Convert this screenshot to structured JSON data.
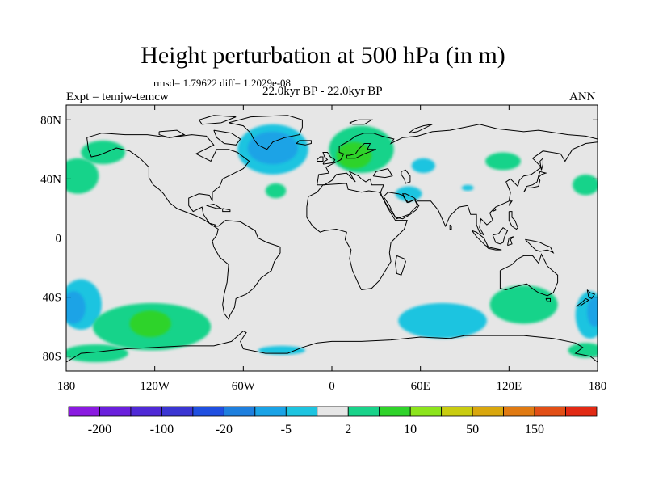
{
  "title": "Height perturbation at 500 hPa (in m)",
  "stats": "rmsd= 1.79622 diff= 1.2029e-08",
  "period": "22.0kyr BP - 22.0kyr BP",
  "experiment": "Expt = temjw-temcw",
  "season": "ANN",
  "lat_ticks": [
    {
      "label": "80N",
      "lat": 80
    },
    {
      "label": "40N",
      "lat": 40
    },
    {
      "label": "0",
      "lat": 0
    },
    {
      "label": "40S",
      "lat": -40
    },
    {
      "label": "80S",
      "lat": -80
    }
  ],
  "lon_ticks": [
    {
      "label": "180",
      "lon": -180
    },
    {
      "label": "120W",
      "lon": -120
    },
    {
      "label": "60W",
      "lon": -60
    },
    {
      "label": "0",
      "lon": 0
    },
    {
      "label": "60E",
      "lon": 60
    },
    {
      "label": "120E",
      "lon": 120
    },
    {
      "label": "180",
      "lon": 180
    }
  ],
  "colorbar": {
    "colors": [
      "#8a1ae0",
      "#6a1fdc",
      "#4f29d6",
      "#3a35d2",
      "#1f4fe0",
      "#1e7fde",
      "#1aa3e6",
      "#1dc4e0",
      "#e6e6e6",
      "#19d38a",
      "#2fd32a",
      "#8ce41c",
      "#c9cc10",
      "#d9a70d",
      "#e07a12",
      "#e24f16",
      "#e22a14"
    ],
    "labels": [
      {
        "text": "-200",
        "boundary": 1
      },
      {
        "text": "-100",
        "boundary": 3
      },
      {
        "text": "-20",
        "boundary": 5
      },
      {
        "text": "-5",
        "boundary": 7
      },
      {
        "text": "2",
        "boundary": 9
      },
      {
        "text": "10",
        "boundary": 11
      },
      {
        "text": "50",
        "boundary": 13
      },
      {
        "text": "150",
        "boundary": 15
      }
    ]
  },
  "anomalies": [
    {
      "name": "n-atlantic-negative",
      "lon": -40,
      "lat": 60,
      "rx": 24,
      "ry": 17,
      "color": "#1dc4e0"
    },
    {
      "name": "n-atlantic-negative-core",
      "lon": -40,
      "lat": 61,
      "rx": 17,
      "ry": 11,
      "color": "#1aa3e6"
    },
    {
      "name": "n-europe-positive",
      "lon": 20,
      "lat": 60,
      "rx": 22,
      "ry": 16,
      "color": "#19d38a"
    },
    {
      "name": "n-europe-positive-core",
      "lon": 15,
      "lat": 56,
      "rx": 12,
      "ry": 9,
      "color": "#2fd32a"
    },
    {
      "name": "alaska-positive",
      "lon": -155,
      "lat": 58,
      "rx": 15,
      "ry": 8,
      "color": "#19d38a"
    },
    {
      "name": "ne-pacific-positive",
      "lon": -172,
      "lat": 42,
      "rx": 14,
      "ry": 12,
      "color": "#19d38a"
    },
    {
      "name": "mid-atlantic-positive",
      "lon": -38,
      "lat": 32,
      "rx": 7,
      "ry": 5,
      "color": "#19d38a"
    },
    {
      "name": "w-siberia-negative",
      "lon": 62,
      "lat": 49,
      "rx": 8,
      "ry": 5,
      "color": "#1dc4e0"
    },
    {
      "name": "mideast-negative",
      "lon": 52,
      "lat": 30,
      "rx": 9,
      "ry": 5,
      "color": "#1dc4e0"
    },
    {
      "name": "tibet-negative",
      "lon": 92,
      "lat": 34,
      "rx": 4,
      "ry": 2,
      "color": "#1dc4e0"
    },
    {
      "name": "e-siberia-positive",
      "lon": 116,
      "lat": 52,
      "rx": 12,
      "ry": 6,
      "color": "#19d38a"
    },
    {
      "name": "nw-pacific-positive",
      "lon": 172,
      "lat": 36,
      "rx": 9,
      "ry": 7,
      "color": "#19d38a"
    },
    {
      "name": "s-pacific-negative",
      "lon": -170,
      "lat": -45,
      "rx": 14,
      "ry": 17,
      "color": "#1dc4e0"
    },
    {
      "name": "s-pacific-negative-core",
      "lon": -175,
      "lat": -47,
      "rx": 8,
      "ry": 11,
      "color": "#1aa3e6"
    },
    {
      "name": "se-pacific-positive",
      "lon": -122,
      "lat": -60,
      "rx": 40,
      "ry": 16,
      "color": "#19d38a"
    },
    {
      "name": "se-pacific-positive-core",
      "lon": -123,
      "lat": -58,
      "rx": 14,
      "ry": 9,
      "color": "#2fd32a"
    },
    {
      "name": "antarctic-lowlat-positive",
      "lon": -160,
      "lat": -78,
      "rx": 22,
      "ry": 6,
      "color": "#19d38a"
    },
    {
      "name": "weddell-negative",
      "lon": -34,
      "lat": -76,
      "rx": 16,
      "ry": 3,
      "color": "#1dc4e0"
    },
    {
      "name": "s-indian-negative",
      "lon": 75,
      "lat": -56,
      "rx": 30,
      "ry": 12,
      "color": "#1dc4e0"
    },
    {
      "name": "australia-positive",
      "lon": 130,
      "lat": -45,
      "rx": 23,
      "ry": 13,
      "color": "#19d38a"
    },
    {
      "name": "sw-pacific-negative",
      "lon": 175,
      "lat": -52,
      "rx": 10,
      "ry": 16,
      "color": "#1dc4e0"
    },
    {
      "name": "sw-pacific-negative-core",
      "lon": 178,
      "lat": -50,
      "rx": 5,
      "ry": 10,
      "color": "#1aa3e6"
    },
    {
      "name": "ross-positive",
      "lon": 172,
      "lat": -76,
      "rx": 12,
      "ry": 5,
      "color": "#19d38a"
    }
  ]
}
